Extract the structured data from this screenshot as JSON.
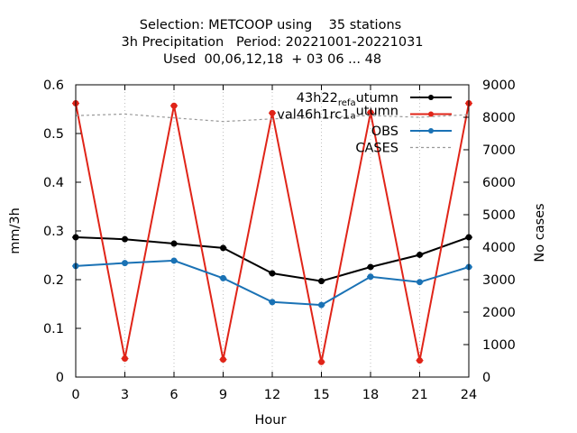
{
  "chart_data": {
    "type": "line",
    "title_lines": [
      "Selection: METCOOP using    35 stations",
      "3h Precipitation   Period: 20221001-20221031",
      "Used  00,06,12,18  + 03 06 ... 48"
    ],
    "xlabel": "Hour",
    "ylabel": "mm/3h",
    "y2label": "No cases",
    "x": [
      0,
      3,
      6,
      9,
      12,
      15,
      18,
      21,
      24
    ],
    "xlim": [
      0,
      24
    ],
    "ylim": [
      0,
      0.6
    ],
    "y2lim": [
      0,
      9000
    ],
    "xticks": [
      "0",
      "3",
      "6",
      "9",
      "12",
      "15",
      "18",
      "21",
      "24"
    ],
    "yticks": [
      "0",
      "0.1",
      "0.2",
      "0.3",
      "0.4",
      "0.5",
      "0.6"
    ],
    "y2ticks": [
      "0",
      "1000",
      "2000",
      "3000",
      "4000",
      "5000",
      "6000",
      "7000",
      "8000",
      "9000"
    ],
    "legend_position": "top-right",
    "series": [
      {
        "name": "43h22_ref_autumn",
        "legend_parts": [
          "43h22",
          "ref",
          "a",
          "utumn"
        ],
        "axis": "y",
        "color": "#000000",
        "dashed": false,
        "marker": true,
        "values": [
          0.287,
          0.283,
          0.274,
          0.265,
          0.213,
          0.197,
          0.226,
          0.251,
          0.287
        ]
      },
      {
        "name": "val46h1rc1_autumn",
        "legend_parts": [
          "val46h1rc1",
          "",
          "a",
          "utumn"
        ],
        "axis": "y",
        "color": "#e02418",
        "dashed": false,
        "marker": true,
        "values": [
          0.562,
          0.038,
          0.557,
          0.036,
          0.542,
          0.031,
          0.543,
          0.034,
          0.562
        ]
      },
      {
        "name": "OBS",
        "legend_parts": [
          "OBS"
        ],
        "axis": "y",
        "color": "#1a72b5",
        "dashed": false,
        "marker": true,
        "values": [
          0.228,
          0.234,
          0.239,
          0.203,
          0.154,
          0.148,
          0.206,
          0.195,
          0.226
        ]
      },
      {
        "name": "CASES",
        "legend_parts": [
          "CASES"
        ],
        "axis": "y2",
        "color": "#999999",
        "dashed": true,
        "marker": false,
        "values": [
          8050,
          8100,
          7980,
          7870,
          7950,
          8000,
          8050,
          8000,
          8080
        ]
      }
    ]
  }
}
